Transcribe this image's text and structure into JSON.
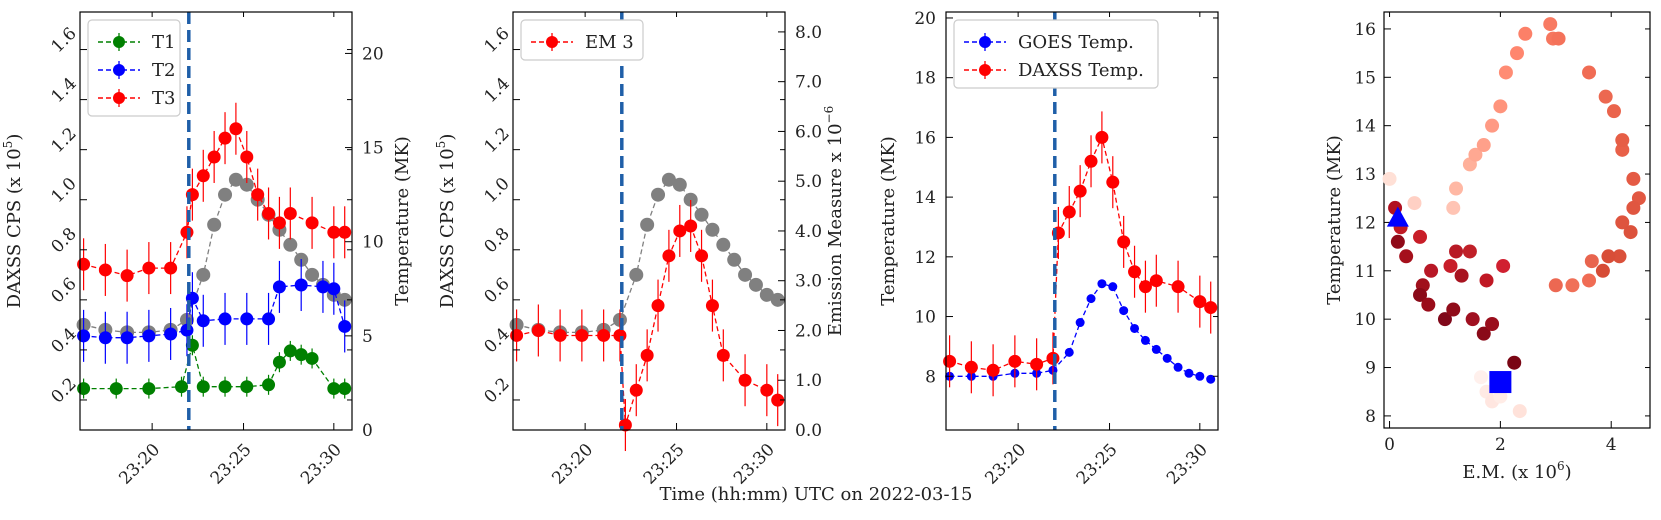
{
  "figure": {
    "shared_xlabel": "Time (hh:mm) UTC on 2022-03-15"
  },
  "chart_data": [
    {
      "id": "p1",
      "type": "scatter",
      "ylabel_left": "DAXSS CPS (x 10^5)",
      "ylabel_left_base": "DAXSS CPS (x 10",
      "ylabel_left_exp": "5",
      "ylabel_left_close": ")",
      "ylabel_right": "Temperature (MK)",
      "x_ticks": [
        "23:20",
        "23:25",
        "23:30"
      ],
      "x_tick_values": [
        23.333,
        23.417,
        23.5
      ],
      "xlim": [
        23.2667,
        23.5167
      ],
      "ylim_left": [
        0.08,
        1.75
      ],
      "ylim_right": [
        0,
        22.2
      ],
      "yticks_left": [
        "0.2",
        "0.4",
        "0.6",
        "0.8",
        "1.0",
        "1.2",
        "1.4",
        "1.6"
      ],
      "yticks_right": [
        "0",
        "5",
        "10",
        "15",
        "20"
      ],
      "vline_x": 23.3667,
      "legend": {
        "position": "upper-left",
        "entries": [
          {
            "label": "T1",
            "color": "#008000"
          },
          {
            "label": "T2",
            "color": "#0000ff"
          },
          {
            "label": "T3",
            "color": "#ff0000"
          }
        ]
      },
      "colors": {
        "cps": "#808080",
        "T1": "#008000",
        "T2": "#0000ff",
        "T3": "#ff0000",
        "vline": "#1f5fa8",
        "right_axis": "#ff0000"
      },
      "series": [
        {
          "name": "DAXSS CPS",
          "axis": "left",
          "color": "#808080",
          "x": [
            23.27,
            23.29,
            23.31,
            23.33,
            23.35,
            23.365,
            23.38,
            23.39,
            23.4,
            23.41,
            23.42,
            23.43,
            23.44,
            23.45,
            23.46,
            23.47,
            23.48,
            23.49,
            23.5,
            23.51
          ],
          "y": [
            0.5,
            0.48,
            0.47,
            0.47,
            0.48,
            0.52,
            0.7,
            0.9,
            1.02,
            1.08,
            1.06,
            1.0,
            0.94,
            0.88,
            0.82,
            0.76,
            0.7,
            0.66,
            0.62,
            0.6
          ]
        },
        {
          "name": "T1",
          "axis": "right",
          "color": "#008000",
          "x": [
            23.27,
            23.3,
            23.33,
            23.36,
            23.37,
            23.38,
            23.4,
            23.42,
            23.44,
            23.45,
            23.46,
            23.47,
            23.48,
            23.5,
            23.51
          ],
          "y": [
            2.2,
            2.2,
            2.2,
            2.3,
            4.5,
            2.3,
            2.3,
            2.3,
            2.4,
            3.6,
            4.2,
            4.0,
            3.8,
            2.2,
            2.2
          ]
        },
        {
          "name": "T2",
          "axis": "right",
          "color": "#0000ff",
          "x": [
            23.27,
            23.29,
            23.31,
            23.33,
            23.35,
            23.365,
            23.37,
            23.38,
            23.4,
            23.42,
            23.44,
            23.45,
            23.47,
            23.49,
            23.5,
            23.51
          ],
          "y": [
            5.0,
            4.9,
            4.9,
            5.0,
            5.1,
            5.3,
            7.0,
            5.8,
            5.9,
            5.9,
            5.9,
            7.6,
            7.7,
            7.6,
            7.5,
            5.5
          ]
        },
        {
          "name": "T3",
          "axis": "right",
          "color": "#ff0000",
          "x": [
            23.27,
            23.29,
            23.31,
            23.33,
            23.35,
            23.365,
            23.37,
            23.38,
            23.39,
            23.4,
            23.41,
            23.42,
            23.43,
            23.44,
            23.45,
            23.46,
            23.48,
            23.5,
            23.51
          ],
          "y": [
            8.8,
            8.5,
            8.2,
            8.6,
            8.6,
            10.5,
            12.5,
            13.5,
            14.5,
            15.5,
            16.0,
            14.5,
            12.5,
            11.5,
            11.0,
            11.5,
            11.0,
            10.5,
            10.5
          ]
        }
      ]
    },
    {
      "id": "p2",
      "type": "scatter",
      "ylabel_left": "DAXSS CPS (x 10^5)",
      "ylabel_left_base": "DAXSS CPS (x 10",
      "ylabel_left_exp": "5",
      "ylabel_left_close": ")",
      "ylabel_right": "Emission Measure x 10^-6",
      "ylabel_right_base": "Emission Measure x 10",
      "ylabel_right_exp": "−6",
      "x_ticks": [
        "23:20",
        "23:25",
        "23:30"
      ],
      "x_tick_values": [
        23.333,
        23.417,
        23.5
      ],
      "xlim": [
        23.2667,
        23.5167
      ],
      "ylim_left": [
        0.08,
        1.75
      ],
      "ylim_right": [
        0,
        8.4
      ],
      "yticks_left": [
        "0.2",
        "0.4",
        "0.6",
        "0.8",
        "1.0",
        "1.2",
        "1.4",
        "1.6"
      ],
      "yticks_right": [
        "0.0",
        "1.0",
        "2.0",
        "3.0",
        "4.0",
        "5.0",
        "6.0",
        "7.0",
        "8.0"
      ],
      "vline_x": 23.3667,
      "legend": {
        "position": "upper-left",
        "entries": [
          {
            "label": "EM 3",
            "color": "#ff0000"
          }
        ]
      },
      "colors": {
        "cps": "#808080",
        "EM3": "#ff0000",
        "vline": "#1f5fa8",
        "right_axis": "#ff0000"
      },
      "series": [
        {
          "name": "DAXSS CPS",
          "axis": "left",
          "color": "#808080",
          "x": [
            23.27,
            23.29,
            23.31,
            23.33,
            23.35,
            23.365,
            23.38,
            23.39,
            23.4,
            23.41,
            23.42,
            23.43,
            23.44,
            23.45,
            23.46,
            23.47,
            23.48,
            23.49,
            23.5,
            23.51
          ],
          "y": [
            0.5,
            0.48,
            0.47,
            0.47,
            0.48,
            0.52,
            0.7,
            0.9,
            1.02,
            1.08,
            1.06,
            1.0,
            0.94,
            0.88,
            0.82,
            0.76,
            0.7,
            0.66,
            0.62,
            0.6
          ]
        },
        {
          "name": "EM 3",
          "axis": "right",
          "color": "#ff0000",
          "x": [
            23.27,
            23.29,
            23.31,
            23.33,
            23.35,
            23.365,
            23.37,
            23.38,
            23.39,
            23.4,
            23.41,
            23.42,
            23.43,
            23.44,
            23.45,
            23.46,
            23.48,
            23.5,
            23.51
          ],
          "y": [
            1.9,
            2.0,
            1.9,
            1.9,
            1.9,
            1.9,
            0.1,
            0.8,
            1.5,
            2.5,
            3.5,
            4.0,
            4.1,
            3.5,
            2.5,
            1.5,
            1.0,
            0.8,
            0.6
          ]
        }
      ]
    },
    {
      "id": "p3",
      "type": "scatter",
      "ylabel_left": "Temperature (MK)",
      "x_ticks": [
        "23:20",
        "23:25",
        "23:30"
      ],
      "x_tick_values": [
        23.333,
        23.417,
        23.5
      ],
      "xlim": [
        23.2667,
        23.5167
      ],
      "ylim_left": [
        6.2,
        20.2
      ],
      "yticks_left": [
        "8",
        "10",
        "12",
        "14",
        "16",
        "18",
        "20"
      ],
      "vline_x": 23.3667,
      "legend": {
        "position": "upper-left",
        "entries": [
          {
            "label": "GOES Temp.",
            "color": "#0000ff"
          },
          {
            "label": "DAXSS Temp.",
            "color": "#ff0000"
          }
        ]
      },
      "colors": {
        "GOES": "#0000ff",
        "DAXSS": "#ff0000",
        "vline": "#1f5fa8"
      },
      "series": [
        {
          "name": "GOES Temp.",
          "axis": "left",
          "color": "#0000ff",
          "x": [
            23.27,
            23.29,
            23.31,
            23.33,
            23.35,
            23.365,
            23.38,
            23.39,
            23.4,
            23.41,
            23.42,
            23.43,
            23.44,
            23.45,
            23.46,
            23.47,
            23.48,
            23.49,
            23.5,
            23.51
          ],
          "y": [
            8.0,
            8.0,
            8.0,
            8.1,
            8.1,
            8.2,
            8.8,
            9.8,
            10.6,
            11.1,
            11.0,
            10.2,
            9.6,
            9.2,
            8.9,
            8.6,
            8.3,
            8.1,
            8.0,
            7.9
          ]
        },
        {
          "name": "DAXSS Temp.",
          "axis": "left",
          "color": "#ff0000",
          "x": [
            23.27,
            23.29,
            23.31,
            23.33,
            23.35,
            23.365,
            23.37,
            23.38,
            23.39,
            23.4,
            23.41,
            23.42,
            23.43,
            23.44,
            23.45,
            23.46,
            23.48,
            23.5,
            23.51
          ],
          "y": [
            8.5,
            8.3,
            8.2,
            8.5,
            8.4,
            8.6,
            12.8,
            13.5,
            14.2,
            15.2,
            16.0,
            14.5,
            12.5,
            11.5,
            11.0,
            11.2,
            11.0,
            10.5,
            10.3
          ]
        }
      ]
    },
    {
      "id": "p4",
      "type": "scatter",
      "xlabel": "E.M. (x 10^6)",
      "xlabel_base": "E.M. (x 10",
      "xlabel_exp": "6",
      "xlabel_close": ")",
      "ylabel_left": "Temperature (MK)",
      "xlim": [
        -0.1,
        4.7
      ],
      "ylim_left": [
        7.75,
        16.35
      ],
      "x_ticks": [
        "0",
        "2",
        "4"
      ],
      "x_tick_values": [
        0,
        2,
        4
      ],
      "yticks_left": [
        "8",
        "9",
        "10",
        "11",
        "12",
        "13",
        "14",
        "15",
        "16"
      ],
      "colors": {
        "triangle": "#0000ff",
        "square": "#0000ff"
      },
      "points": [
        {
          "x": 0.0,
          "y": 12.9,
          "color": "#ffe0d6"
        },
        {
          "x": 0.45,
          "y": 12.4,
          "color": "#ffd0c4"
        },
        {
          "x": 0.1,
          "y": 12.3,
          "color": "#b01020"
        },
        {
          "x": 0.2,
          "y": 11.9,
          "color": "#c01a24"
        },
        {
          "x": 0.15,
          "y": 11.6,
          "color": "#900a18"
        },
        {
          "x": 0.3,
          "y": 11.3,
          "color": "#a5101c"
        },
        {
          "x": 0.55,
          "y": 11.7,
          "color": "#c81e28"
        },
        {
          "x": 0.75,
          "y": 11.0,
          "color": "#b81826"
        },
        {
          "x": 0.6,
          "y": 10.7,
          "color": "#a0101c"
        },
        {
          "x": 0.55,
          "y": 10.5,
          "color": "#8a0a18"
        },
        {
          "x": 0.7,
          "y": 10.3,
          "color": "#9a0c1a"
        },
        {
          "x": 1.0,
          "y": 10.0,
          "color": "#80081a"
        },
        {
          "x": 1.1,
          "y": 11.1,
          "color": "#c81e2a"
        },
        {
          "x": 1.2,
          "y": 11.4,
          "color": "#b81a26"
        },
        {
          "x": 1.3,
          "y": 10.9,
          "color": "#a81420"
        },
        {
          "x": 1.45,
          "y": 11.4,
          "color": "#c02028"
        },
        {
          "x": 1.15,
          "y": 10.2,
          "color": "#900c1a"
        },
        {
          "x": 1.5,
          "y": 10.0,
          "color": "#a01020"
        },
        {
          "x": 1.75,
          "y": 10.8,
          "color": "#c01824"
        },
        {
          "x": 1.7,
          "y": 9.7,
          "color": "#8a0a18"
        },
        {
          "x": 1.85,
          "y": 9.9,
          "color": "#9a0e1c"
        },
        {
          "x": 2.05,
          "y": 11.1,
          "color": "#d02030"
        },
        {
          "x": 2.25,
          "y": 9.1,
          "color": "#7a0614"
        },
        {
          "x": 1.15,
          "y": 12.3,
          "color": "#ffc4b4"
        },
        {
          "x": 1.2,
          "y": 12.7,
          "color": "#ffb8a4"
        },
        {
          "x": 1.45,
          "y": 13.2,
          "color": "#ffb09a"
        },
        {
          "x": 1.55,
          "y": 13.4,
          "color": "#ffa892"
        },
        {
          "x": 1.7,
          "y": 13.6,
          "color": "#ffa08a"
        },
        {
          "x": 1.85,
          "y": 14.0,
          "color": "#ff9a84"
        },
        {
          "x": 2.0,
          "y": 14.4,
          "color": "#ff947c"
        },
        {
          "x": 2.1,
          "y": 15.1,
          "color": "#ff8c74"
        },
        {
          "x": 2.3,
          "y": 15.5,
          "color": "#ff866e"
        },
        {
          "x": 2.45,
          "y": 15.9,
          "color": "#fc8068"
        },
        {
          "x": 2.9,
          "y": 16.1,
          "color": "#f87a62"
        },
        {
          "x": 2.95,
          "y": 15.8,
          "color": "#f6765e"
        },
        {
          "x": 3.05,
          "y": 15.8,
          "color": "#f4725a"
        },
        {
          "x": 3.6,
          "y": 15.1,
          "color": "#f06c54"
        },
        {
          "x": 3.9,
          "y": 14.6,
          "color": "#ec6850"
        },
        {
          "x": 4.05,
          "y": 14.3,
          "color": "#ea644c"
        },
        {
          "x": 4.2,
          "y": 13.5,
          "color": "#e86048"
        },
        {
          "x": 4.2,
          "y": 13.7,
          "color": "#e65e46"
        },
        {
          "x": 4.4,
          "y": 12.9,
          "color": "#e45a44"
        },
        {
          "x": 4.5,
          "y": 12.5,
          "color": "#e25842"
        },
        {
          "x": 4.4,
          "y": 12.3,
          "color": "#e05640"
        },
        {
          "x": 4.2,
          "y": 12.0,
          "color": "#de543e"
        },
        {
          "x": 4.35,
          "y": 11.8,
          "color": "#dc523c"
        },
        {
          "x": 4.15,
          "y": 11.3,
          "color": "#da503a"
        },
        {
          "x": 3.95,
          "y": 11.3,
          "color": "#d84e38"
        },
        {
          "x": 3.85,
          "y": 11.0,
          "color": "#d64c36"
        },
        {
          "x": 3.6,
          "y": 10.8,
          "color": "#f06c54"
        },
        {
          "x": 3.3,
          "y": 10.7,
          "color": "#f07058"
        },
        {
          "x": 3.0,
          "y": 10.7,
          "color": "#ec6852"
        },
        {
          "x": 3.65,
          "y": 11.2,
          "color": "#e8644e"
        },
        {
          "x": 1.65,
          "y": 8.8,
          "color": "#fff0ec"
        },
        {
          "x": 1.75,
          "y": 8.5,
          "color": "#ffeae4"
        },
        {
          "x": 1.85,
          "y": 8.3,
          "color": "#ffe6e0"
        },
        {
          "x": 2.35,
          "y": 8.1,
          "color": "#ffe2da"
        },
        {
          "x": 2.0,
          "y": 8.4,
          "color": "#ffece6"
        }
      ],
      "markers": [
        {
          "shape": "triangle",
          "x": 0.15,
          "y": 12.1,
          "color": "#0000ff"
        },
        {
          "shape": "square",
          "x": 2.0,
          "y": 8.7,
          "color": "#0000ff"
        }
      ]
    }
  ]
}
